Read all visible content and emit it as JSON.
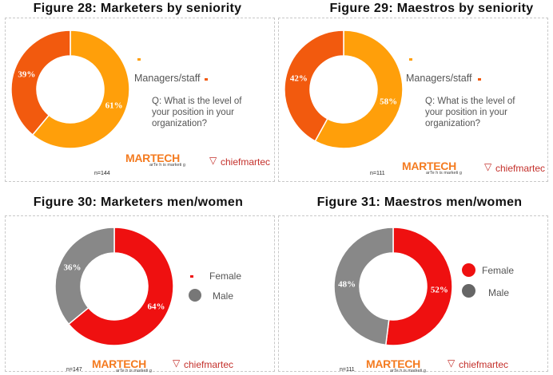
{
  "titles": {
    "fig28": "Figure 28:  Marketers by seniority",
    "fig29": "Figure 29:  Maestros by seniority",
    "fig30": "Figure 30:  Marketers men/women",
    "fig31": "Figure 31:  Maestros men/women"
  },
  "seniority_legend": {
    "label": "Managers/staff",
    "question": "Q: What is the level of\nyour position in your\norganization?"
  },
  "gender_legend": {
    "female": "Female",
    "male": "Male"
  },
  "samples": {
    "fig28": "n=144",
    "fig29": "n=111",
    "fig30": "n=147",
    "fig31": "n=111"
  },
  "logos": {
    "martech": "MARTECH",
    "martech_tag": "arTe h is marketi g",
    "chefmartec": "chiefmartec"
  },
  "colors": {
    "managers": "#f25a0e",
    "staff": "#ff9f0a",
    "female": "#ef1010",
    "male": "#888888"
  },
  "chart_data": [
    {
      "type": "pie",
      "title": "Figure 28:  Marketers by seniority",
      "categories": [
        "Managers",
        "staff"
      ],
      "values": [
        39,
        61
      ],
      "data_labels": [
        "39%",
        "61%"
      ],
      "n": "n=144"
    },
    {
      "type": "pie",
      "title": "Figure 29:  Maestros by seniority",
      "categories": [
        "Managers",
        "staff"
      ],
      "values": [
        42,
        58
      ],
      "data_labels": [
        "42%",
        "58%"
      ],
      "n": "n=111"
    },
    {
      "type": "pie",
      "title": "Figure 30:  Marketers men/women",
      "categories": [
        "Female",
        "Male"
      ],
      "values": [
        64,
        36
      ],
      "data_labels": [
        "64%",
        "36%"
      ],
      "n": "n=147"
    },
    {
      "type": "pie",
      "title": "Figure 31:  Maestros men/women",
      "categories": [
        "Female",
        "Male"
      ],
      "values": [
        52,
        48
      ],
      "data_labels": [
        "52%",
        "48%"
      ],
      "n": "n=111"
    }
  ]
}
